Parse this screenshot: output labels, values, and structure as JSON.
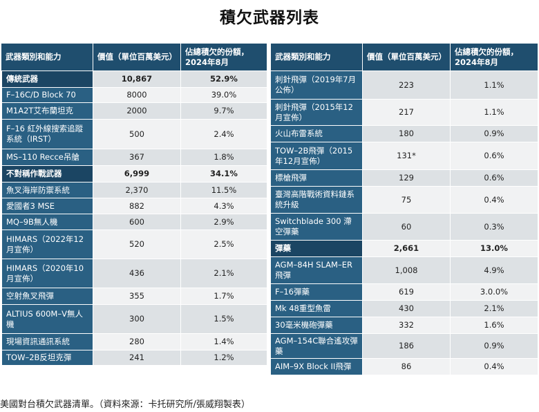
{
  "title": "積欠武器列表",
  "headers": {
    "name": "武器類別和能力",
    "value": "價值（單位百萬美元）",
    "share": "佔總積欠的份額，2024年8月"
  },
  "left_rows": [
    {
      "name": "傳統武器",
      "value": "10,867",
      "share": "52.9%",
      "category": true
    },
    {
      "name": "F–16C/D Block 70",
      "value": "8000",
      "share": "39.0%"
    },
    {
      "name": "M1A2T艾布蘭坦克",
      "value": "2000",
      "share": "9.7%"
    },
    {
      "name": "F–16 紅外線搜索追蹤系統（IRST）",
      "value": "500",
      "share": "2.4%"
    },
    {
      "name": "MS–110 Recce吊艙",
      "value": "367",
      "share": "1.8%"
    },
    {
      "name": "不對稱作戰武器",
      "value": "6,999",
      "share": "34.1%",
      "category": true
    },
    {
      "name": "魚叉海岸防禦系統",
      "value": "2,370",
      "share": "11.5%"
    },
    {
      "name": "愛國者3 MSE",
      "value": "882",
      "share": "4.3%"
    },
    {
      "name": "MQ–9B無人機",
      "value": "600",
      "share": "2.9%"
    },
    {
      "name": "HIMARS（2022年12月宣佈）",
      "value": "520",
      "share": "2.5%"
    },
    {
      "name": "HIMARS（2020年10月宣佈）",
      "value": "436",
      "share": "2.1%"
    },
    {
      "name": "空射魚叉飛彈",
      "value": "355",
      "share": "1.7%"
    },
    {
      "name": "ALTIUS 600M–V無人機",
      "value": "300",
      "share": "1.5%"
    },
    {
      "name": "現場資訊通訊系統",
      "value": "280",
      "share": "1.4%"
    },
    {
      "name": "TOW–2B反坦克彈",
      "value": "241",
      "share": "1.2%"
    }
  ],
  "right_rows": [
    {
      "name": "刺針飛彈（2019年7月公佈）",
      "value": "223",
      "share": "1.1%"
    },
    {
      "name": "刺針飛彈（2015年12月宣佈）",
      "value": "217",
      "share": "1.1%"
    },
    {
      "name": "火山布雷系統",
      "value": "180",
      "share": "0.9%"
    },
    {
      "name": "TOW–2B飛彈（2015年12月宣佈）",
      "value": "131*",
      "share": "0.6%"
    },
    {
      "name": "標槍飛彈",
      "value": "129",
      "share": "0.6%"
    },
    {
      "name": "臺灣高階戰術資料鏈系統升級",
      "value": "75",
      "share": "0.4%"
    },
    {
      "name": "Switchblade 300 滯空彈藥",
      "value": "60",
      "share": "0.3%"
    },
    {
      "name": "彈藥",
      "value": "2,661",
      "share": "13.0%",
      "category": true
    },
    {
      "name": "AGM–84H SLAM–ER飛彈",
      "value": "1,008",
      "share": "4.9%"
    },
    {
      "name": "F–16彈藥",
      "value": "619",
      "share": "3.0.0%"
    },
    {
      "name": "Mk 48重型魚雷",
      "value": "430",
      "share": "2.1%"
    },
    {
      "name": "30毫米機砲彈藥",
      "value": "332",
      "share": "1.6%"
    },
    {
      "name": "AGM–154C聯合遙攻彈藥",
      "value": "186",
      "share": "0.9%"
    },
    {
      "name": "AIM–9X Block II飛彈",
      "value": "86",
      "share": "0.4%"
    }
  ],
  "caption": "美國對台積欠武器清單。（資料來源：卡托研究所/張威翔製表）"
}
